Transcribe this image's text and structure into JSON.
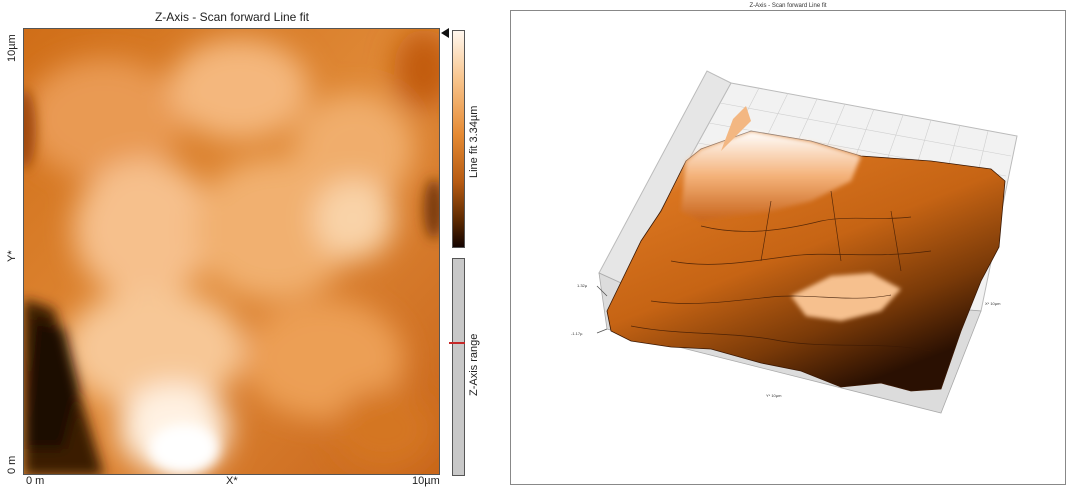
{
  "left_panel": {
    "title": "Z-Axis - Scan forward   Line fit",
    "y_axis": {
      "label": "Y*",
      "top_tick": "10µm",
      "bottom_tick": "0 m"
    },
    "x_axis": {
      "label": "X*",
      "left_tick": "0 m",
      "right_tick": "10µm"
    },
    "colorbar_label": "Line fit 3.34µm",
    "range_label": "Z-Axis range",
    "colors": {
      "high": "#fff7ee",
      "mid": "#e58a33",
      "low": "#140400"
    }
  },
  "right_panel": {
    "title": "Z-Axis - Scan forward   Line fit",
    "z_top_label": "1.32µ",
    "z_bottom_label": "-1.17µ",
    "x_label": "X* 10µm",
    "y_label": "Y* 10µm"
  }
}
